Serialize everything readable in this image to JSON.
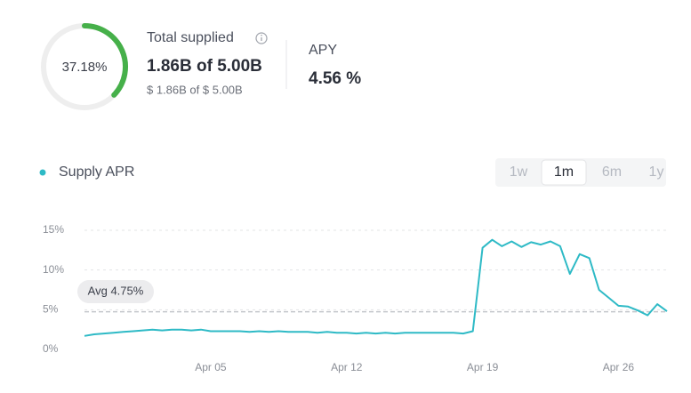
{
  "header": {
    "supply_percent": 37.18,
    "supply_percent_label": "37.18%",
    "total_label": "Total supplied",
    "total": "1.86B of 5.00B",
    "total_usd": "$ 1.86B of $ 5.00B",
    "apy_label": "APY",
    "apy": "4.56 %"
  },
  "tabs": {
    "items": [
      "1w",
      "1m",
      "6m",
      "1y"
    ],
    "selected": "1m"
  },
  "chart_data": {
    "type": "line",
    "x": [
      -1.5,
      -1,
      -0.5,
      0,
      0.5,
      1,
      1.5,
      2,
      2.5,
      3,
      3.5,
      4,
      4.5,
      5,
      5.5,
      6,
      6.5,
      7,
      7.5,
      8,
      8.5,
      9,
      9.5,
      10,
      10.5,
      11,
      11.5,
      12,
      12.5,
      13,
      13.5,
      14,
      14.5,
      15,
      15.5,
      16,
      16.5,
      17,
      17.5,
      18,
      18.5,
      19,
      19.5,
      20,
      20.5,
      21,
      21.5,
      22,
      22.5,
      23,
      23.5,
      24,
      24.5,
      25,
      25.5,
      26,
      26.5,
      27,
      27.5,
      28,
      28.5
    ],
    "series": [
      {
        "name": "Supply APR",
        "color": "#2ebac6",
        "values": [
          1.7,
          1.9,
          2.0,
          2.1,
          2.2,
          2.3,
          2.4,
          2.5,
          2.4,
          2.5,
          2.5,
          2.4,
          2.5,
          2.3,
          2.3,
          2.3,
          2.3,
          2.2,
          2.3,
          2.2,
          2.3,
          2.2,
          2.2,
          2.2,
          2.1,
          2.2,
          2.1,
          2.1,
          2.0,
          2.1,
          2.0,
          2.1,
          2.0,
          2.1,
          2.1,
          2.1,
          2.1,
          2.1,
          2.1,
          2.0,
          2.3,
          12.8,
          13.8,
          13.0,
          13.6,
          12.9,
          13.5,
          13.2,
          13.6,
          13.0,
          9.5,
          12.0,
          11.5,
          7.5,
          6.5,
          5.5,
          5.4,
          4.9,
          4.3,
          5.7,
          4.8
        ]
      }
    ],
    "xlim": [
      -1.5,
      28.5
    ],
    "xticks": [
      {
        "value": 5,
        "label": "Apr 05"
      },
      {
        "value": 12,
        "label": "Apr 12"
      },
      {
        "value": 19,
        "label": "Apr 19"
      },
      {
        "value": 26,
        "label": "Apr 26"
      }
    ],
    "ylim": [
      0,
      15
    ],
    "yticks": [
      {
        "value": 0,
        "label": "0%"
      },
      {
        "value": 5,
        "label": "5%"
      },
      {
        "value": 10,
        "label": "10%"
      },
      {
        "value": 15,
        "label": "15%"
      }
    ],
    "grid": true,
    "average": 4.75,
    "average_label": "Avg 4.75%"
  }
}
